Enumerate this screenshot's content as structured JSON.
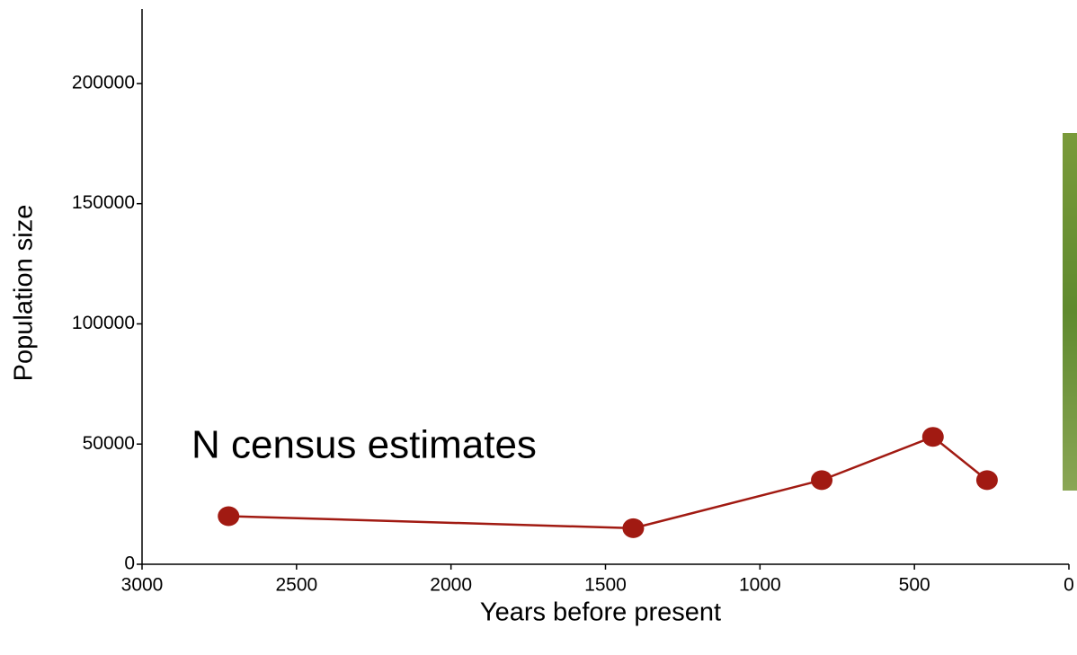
{
  "chart_data": {
    "type": "line",
    "x_label": "Years before present",
    "y_label": "Population size",
    "annotation": "N census estimates",
    "x": [
      2720,
      1410,
      800,
      440,
      265
    ],
    "series": [
      {
        "name": "N census estimates",
        "color": "#a11a12",
        "values": [
          20000,
          15000,
          35000,
          53000,
          35000
        ]
      }
    ],
    "xlim": [
      3000,
      0
    ],
    "xticks": [
      3000,
      2500,
      2000,
      1500,
      1000,
      500,
      0
    ],
    "ylim": [
      0,
      231000
    ],
    "yticks": [
      0,
      50000,
      100000,
      150000,
      200000
    ]
  }
}
